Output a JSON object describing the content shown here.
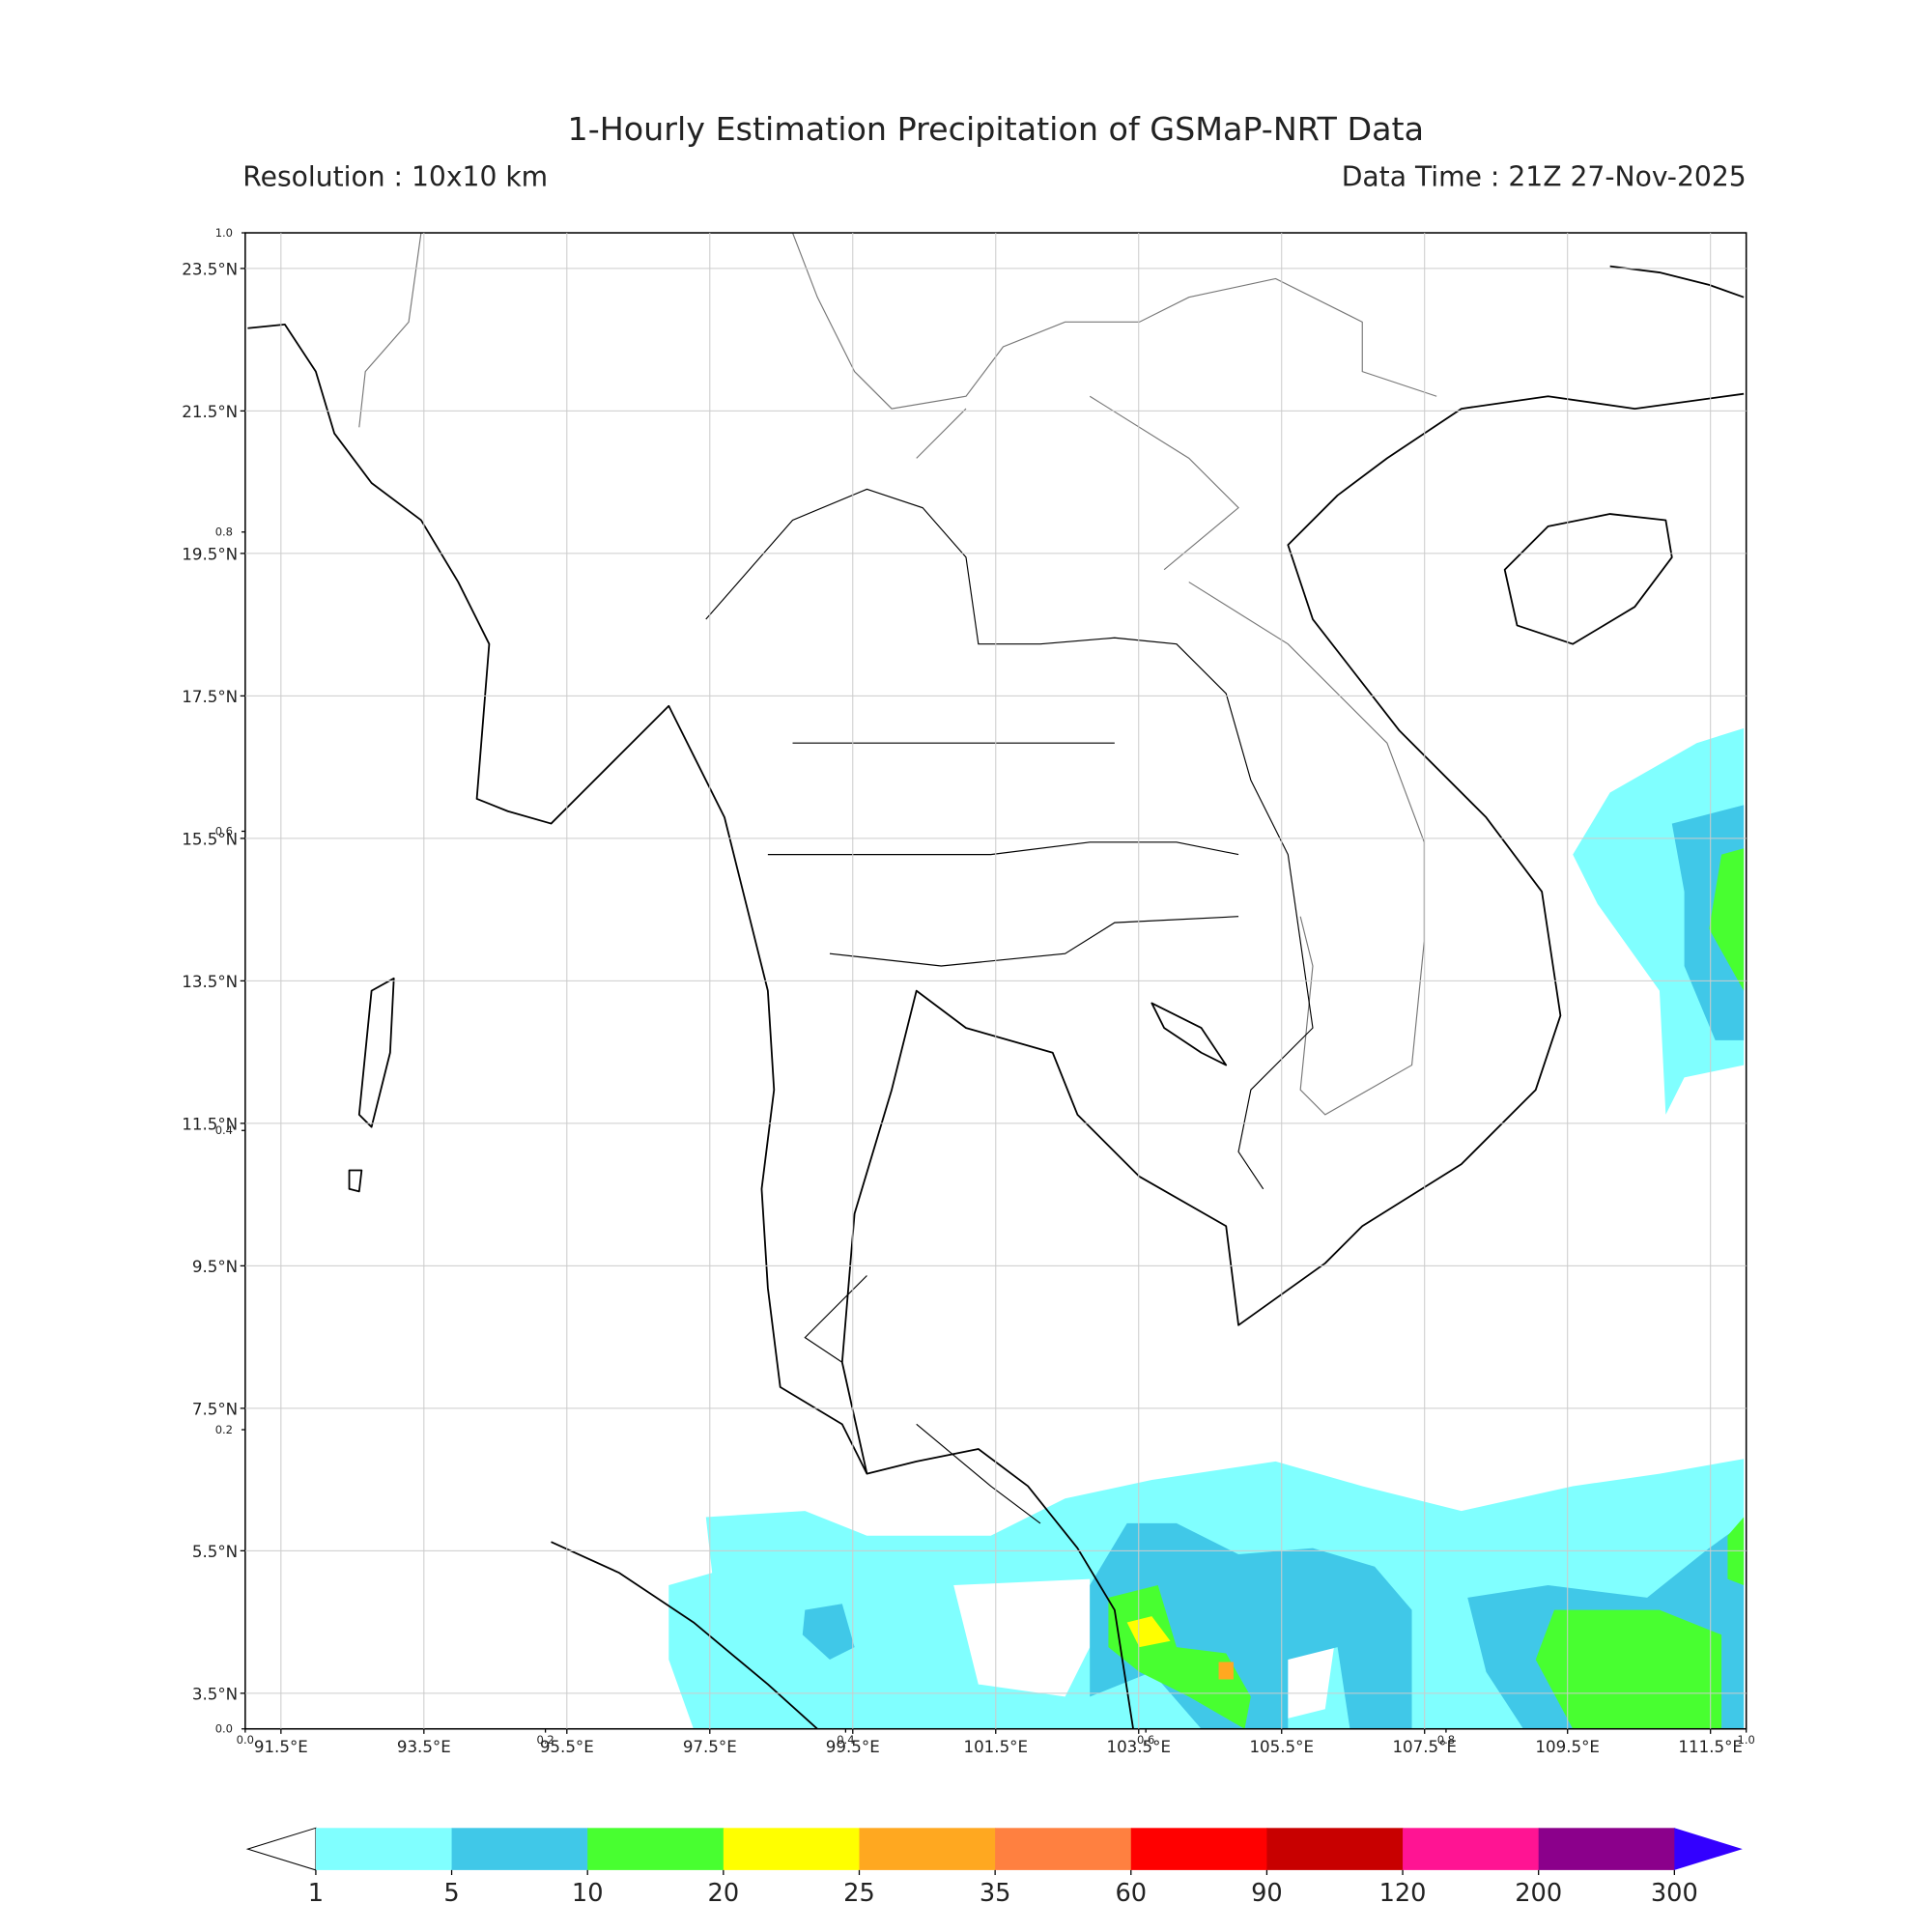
{
  "header": {
    "title": "1-Hourly Estimation Precipitation of GSMaP-NRT Data",
    "resolution": "Resolution : 10x10 km",
    "data_time": "Data Time : 21Z 27-Nov-2025"
  },
  "map": {
    "xlim": [
      91,
      112
    ],
    "ylim": [
      3,
      24
    ],
    "xticks": [
      {
        "value": 91.5,
        "label": "91.5°E"
      },
      {
        "value": 93.5,
        "label": "93.5°E"
      },
      {
        "value": 95.5,
        "label": "95.5°E"
      },
      {
        "value": 97.5,
        "label": "97.5°E"
      },
      {
        "value": 99.5,
        "label": "99.5°E"
      },
      {
        "value": 101.5,
        "label": "101.5°E"
      },
      {
        "value": 103.5,
        "label": "103.5°E"
      },
      {
        "value": 105.5,
        "label": "105.5°E"
      },
      {
        "value": 107.5,
        "label": "107.5°E"
      },
      {
        "value": 109.5,
        "label": "109.5°E"
      },
      {
        "value": 111.5,
        "label": "111.5°E"
      }
    ],
    "yticks": [
      {
        "value": 3.5,
        "label": "3.5°N"
      },
      {
        "value": 5.5,
        "label": "5.5°N"
      },
      {
        "value": 7.5,
        "label": "7.5°N"
      },
      {
        "value": 9.5,
        "label": "9.5°N"
      },
      {
        "value": 11.5,
        "label": "11.5°N"
      },
      {
        "value": 13.5,
        "label": "13.5°N"
      },
      {
        "value": 15.5,
        "label": "15.5°N"
      },
      {
        "value": 17.5,
        "label": "17.5°N"
      },
      {
        "value": 19.5,
        "label": "19.5°N"
      },
      {
        "value": 21.5,
        "label": "21.5°N"
      },
      {
        "value": 23.5,
        "label": "23.5°N"
      }
    ],
    "grid": true,
    "frame_xticks": [
      {
        "value": 0,
        "label": "0.0"
      },
      {
        "value": 0.2,
        "label": "0.2"
      },
      {
        "value": 0.4,
        "label": "0.4"
      },
      {
        "value": 0.6,
        "label": "0.6"
      },
      {
        "value": 0.8,
        "label": "0.8"
      },
      {
        "value": 1,
        "label": "1.0"
      }
    ],
    "frame_yticks": [
      {
        "value": 0,
        "label": "0.0"
      },
      {
        "value": 0.2,
        "label": "0.2"
      },
      {
        "value": 0.4,
        "label": "0.4"
      },
      {
        "value": 0.6,
        "label": "0.6"
      },
      {
        "value": 0.8,
        "label": "0.8"
      },
      {
        "value": 1,
        "label": "1.0"
      }
    ]
  },
  "colorbar": {
    "boundaries": [
      1,
      5,
      10,
      20,
      25,
      35,
      60,
      90,
      120,
      200,
      300
    ],
    "colors": [
      "#80ffff",
      "#40c8e8",
      "#48ff30",
      "#ffff00",
      "#ffa820",
      "#ff8040",
      "#ff0000",
      "#c80000",
      "#ff1493",
      "#8b008b"
    ],
    "under_color": "#ffffff",
    "over_color": "#3300ff"
  }
}
